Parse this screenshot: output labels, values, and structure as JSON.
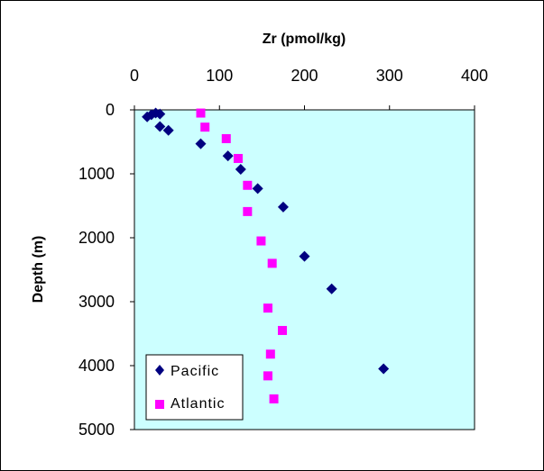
{
  "chart_data": {
    "type": "scatter",
    "xlabel": "Zr (pmol/kg)",
    "ylabel": "Depth (m)",
    "xlim": [
      0,
      400
    ],
    "ylim": [
      0,
      5000
    ],
    "y_reversed": true,
    "x_axis_position": "top",
    "x_ticks": [
      "0",
      "100",
      "200",
      "300",
      "400"
    ],
    "y_ticks": [
      "0",
      "1000",
      "2000",
      "3000",
      "4000",
      "5000"
    ],
    "grid": false,
    "plot_background": "#ccffff",
    "legend_position": "bottom-left",
    "series": [
      {
        "name": "Pacific",
        "marker": "diamond",
        "color": "#000080",
        "points": [
          {
            "x": 15,
            "y": 110
          },
          {
            "x": 20,
            "y": 75
          },
          {
            "x": 25,
            "y": 50
          },
          {
            "x": 30,
            "y": 65
          },
          {
            "x": 30,
            "y": 260
          },
          {
            "x": 40,
            "y": 320
          },
          {
            "x": 78,
            "y": 530
          },
          {
            "x": 110,
            "y": 720
          },
          {
            "x": 125,
            "y": 930
          },
          {
            "x": 145,
            "y": 1230
          },
          {
            "x": 175,
            "y": 1520
          },
          {
            "x": 200,
            "y": 2290
          },
          {
            "x": 232,
            "y": 2800
          },
          {
            "x": 293,
            "y": 4050
          }
        ]
      },
      {
        "name": "Atlantic",
        "marker": "square",
        "color": "#ff00ff",
        "points": [
          {
            "x": 78,
            "y": 50
          },
          {
            "x": 83,
            "y": 270
          },
          {
            "x": 108,
            "y": 450
          },
          {
            "x": 122,
            "y": 760
          },
          {
            "x": 133,
            "y": 1180
          },
          {
            "x": 133,
            "y": 1590
          },
          {
            "x": 149,
            "y": 2050
          },
          {
            "x": 162,
            "y": 2400
          },
          {
            "x": 157,
            "y": 3100
          },
          {
            "x": 174,
            "y": 3450
          },
          {
            "x": 160,
            "y": 3820
          },
          {
            "x": 157,
            "y": 4160
          },
          {
            "x": 164,
            "y": 4520
          }
        ]
      }
    ]
  }
}
